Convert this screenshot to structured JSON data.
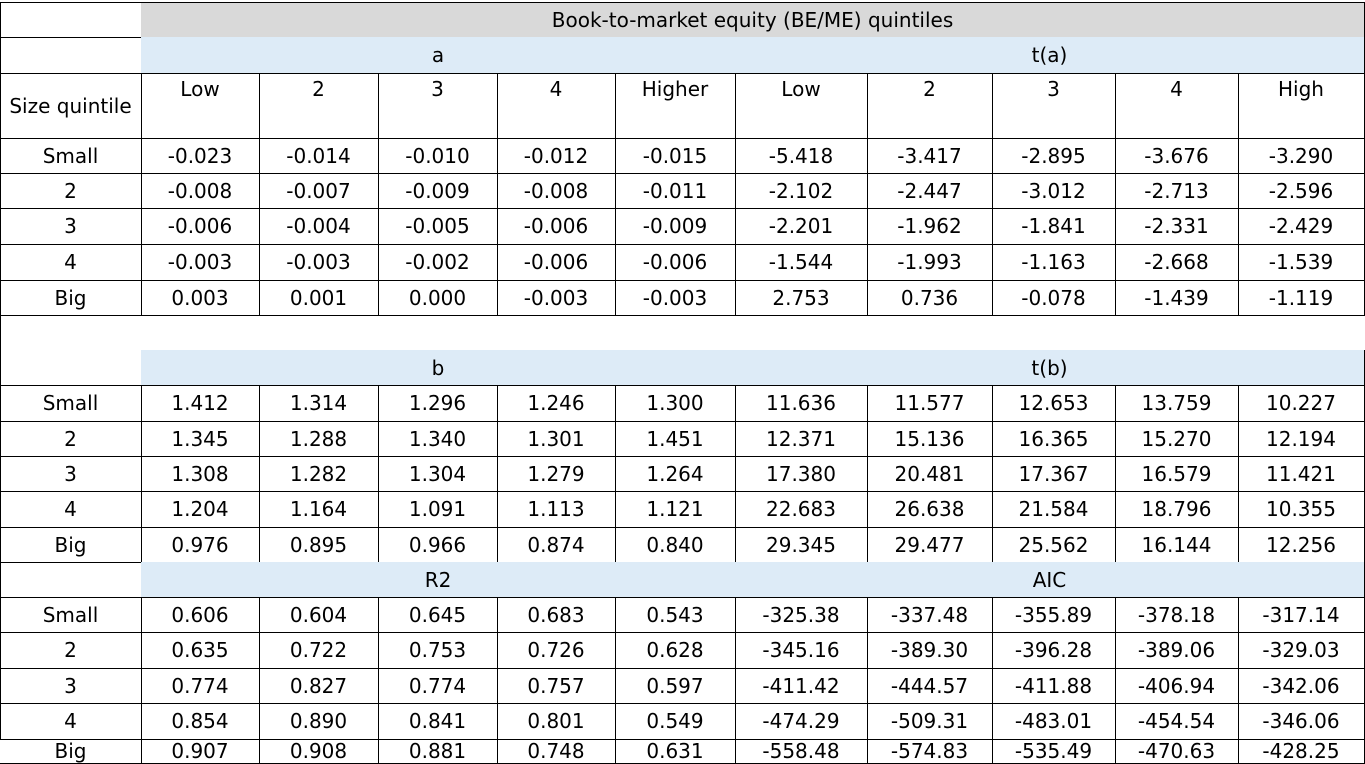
{
  "table": {
    "title": "Book-to-market equity (BE/ME) quintiles",
    "size_header": "Size quintile",
    "sub_headers_left": [
      "Low",
      "2",
      "3",
      "4",
      "Higher"
    ],
    "sub_headers_right": [
      "Low",
      "2",
      "3",
      "4",
      "High"
    ],
    "row_labels": [
      "Small",
      "2",
      "3",
      "4",
      "Big"
    ],
    "sections": [
      {
        "left_label": "a",
        "right_label": "t(a)",
        "rows": [
          [
            "-0.023",
            "-0.014",
            "-0.010",
            "-0.012",
            "-0.015",
            "-5.418",
            "-3.417",
            "-2.895",
            "-3.676",
            "-3.290"
          ],
          [
            "-0.008",
            "-0.007",
            "-0.009",
            "-0.008",
            "-0.011",
            "-2.102",
            "-2.447",
            "-3.012",
            "-2.713",
            "-2.596"
          ],
          [
            "-0.006",
            "-0.004",
            "-0.005",
            "-0.006",
            "-0.009",
            "-2.201",
            "-1.962",
            "-1.841",
            "-2.331",
            "-2.429"
          ],
          [
            "-0.003",
            "-0.003",
            "-0.002",
            "-0.006",
            "-0.006",
            "-1.544",
            "-1.993",
            "-1.163",
            "-2.668",
            "-1.539"
          ],
          [
            "0.003",
            "0.001",
            "0.000",
            "-0.003",
            "-0.003",
            "2.753",
            "0.736",
            "-0.078",
            "-1.439",
            "-1.119"
          ]
        ]
      },
      {
        "left_label": "b",
        "right_label": "t(b)",
        "rows": [
          [
            "1.412",
            "1.314",
            "1.296",
            "1.246",
            "1.300",
            "11.636",
            "11.577",
            "12.653",
            "13.759",
            "10.227"
          ],
          [
            "1.345",
            "1.288",
            "1.340",
            "1.301",
            "1.451",
            "12.371",
            "15.136",
            "16.365",
            "15.270",
            "12.194"
          ],
          [
            "1.308",
            "1.282",
            "1.304",
            "1.279",
            "1.264",
            "17.380",
            "20.481",
            "17.367",
            "16.579",
            "11.421"
          ],
          [
            "1.204",
            "1.164",
            "1.091",
            "1.113",
            "1.121",
            "22.683",
            "26.638",
            "21.584",
            "18.796",
            "10.355"
          ],
          [
            "0.976",
            "0.895",
            "0.966",
            "0.874",
            "0.840",
            "29.345",
            "29.477",
            "25.562",
            "16.144",
            "12.256"
          ]
        ]
      },
      {
        "left_label": "R2",
        "right_label": "AIC",
        "rows": [
          [
            "0.606",
            "0.604",
            "0.645",
            "0.683",
            "0.543",
            "-325.38",
            "-337.48",
            "-355.89",
            "-378.18",
            "-317.14"
          ],
          [
            "0.635",
            "0.722",
            "0.753",
            "0.726",
            "0.628",
            "-345.16",
            "-389.30",
            "-396.28",
            "-389.06",
            "-329.03"
          ],
          [
            "0.774",
            "0.827",
            "0.774",
            "0.757",
            "0.597",
            "-411.42",
            "-444.57",
            "-411.88",
            "-406.94",
            "-342.06"
          ],
          [
            "0.854",
            "0.890",
            "0.841",
            "0.801",
            "0.549",
            "-474.29",
            "-509.31",
            "-483.01",
            "-454.54",
            "-346.06"
          ],
          [
            "0.907",
            "0.908",
            "0.881",
            "0.748",
            "0.631",
            "-558.48",
            "-574.83",
            "-535.49",
            "-470.63",
            "-428.25"
          ]
        ]
      }
    ]
  },
  "colors": {
    "title_bg": "#d9d9d9",
    "section_bg": "#ddebf7",
    "border": "#000000"
  }
}
